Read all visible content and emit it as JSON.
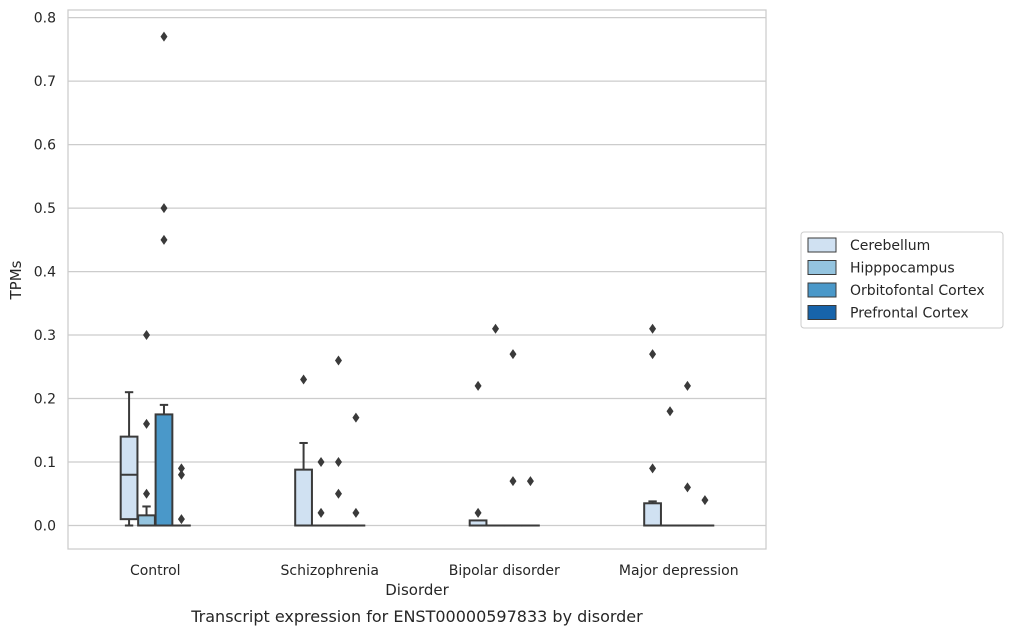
{
  "caption": "Transcript expression for ENST00000597833 by disorder",
  "chart_data": {
    "type": "box",
    "xlabel": "Disorder",
    "ylabel": "TPMs",
    "ylim": [
      -0.037,
      0.812
    ],
    "yticks": [
      0.0,
      0.1,
      0.2,
      0.3,
      0.4,
      0.5,
      0.6,
      0.7,
      0.8
    ],
    "ytick_labels": [
      "0.0",
      "0.1",
      "0.2",
      "0.3",
      "0.4",
      "0.5",
      "0.6",
      "0.7",
      "0.8"
    ],
    "grid": true,
    "legend_position": "center-right",
    "categories": [
      "Control",
      "Schizophrenia",
      "Bipolar disorder",
      "Major depression"
    ],
    "series": [
      {
        "name": "Cerebellum",
        "color": "#d0e1f2",
        "boxes": [
          {
            "q1": 0.01,
            "median": 0.08,
            "q3": 0.14,
            "whisker_low": 0.0,
            "whisker_high": 0.21,
            "outliers": []
          },
          {
            "q1": 0.0,
            "median": 0.0,
            "q3": 0.088,
            "whisker_low": 0.0,
            "whisker_high": 0.13,
            "outliers": [
              0.23
            ]
          },
          {
            "q1": 0.0,
            "median": 0.0,
            "q3": 0.008,
            "whisker_low": 0.0,
            "whisker_high": 0.008,
            "outliers": [
              0.02,
              0.22
            ]
          },
          {
            "q1": 0.0,
            "median": 0.0,
            "q3": 0.035,
            "whisker_low": 0.0,
            "whisker_high": 0.038,
            "outliers": [
              0.09,
              0.27,
              0.31
            ]
          }
        ]
      },
      {
        "name": "Hipppocampus",
        "color": "#94c4df",
        "boxes": [
          {
            "q1": 0.0,
            "median": 0.0,
            "q3": 0.016,
            "whisker_low": 0.0,
            "whisker_high": 0.03,
            "outliers": [
              0.05,
              0.16,
              0.3
            ]
          },
          {
            "q1": 0.0,
            "median": 0.0,
            "q3": 0.0,
            "whisker_low": 0.0,
            "whisker_high": 0.0,
            "outliers": [
              0.02,
              0.1
            ]
          },
          {
            "q1": 0.0,
            "median": 0.0,
            "q3": 0.0,
            "whisker_low": 0.0,
            "whisker_high": 0.0,
            "outliers": [
              0.31
            ]
          },
          {
            "q1": 0.0,
            "median": 0.0,
            "q3": 0.0,
            "whisker_low": 0.0,
            "whisker_high": 0.0,
            "outliers": [
              0.18
            ]
          }
        ]
      },
      {
        "name": "Orbitofontal Cortex",
        "color": "#4a98c9",
        "boxes": [
          {
            "q1": 0.0,
            "median": 0.0,
            "q3": 0.175,
            "whisker_low": 0.0,
            "whisker_high": 0.19,
            "outliers": [
              0.45,
              0.5,
              0.77
            ]
          },
          {
            "q1": 0.0,
            "median": 0.0,
            "q3": 0.0,
            "whisker_low": 0.0,
            "whisker_high": 0.0,
            "outliers": [
              0.05,
              0.1,
              0.26
            ]
          },
          {
            "q1": 0.0,
            "median": 0.0,
            "q3": 0.0,
            "whisker_low": 0.0,
            "whisker_high": 0.0,
            "outliers": [
              0.07,
              0.27
            ]
          },
          {
            "q1": 0.0,
            "median": 0.0,
            "q3": 0.0,
            "whisker_low": 0.0,
            "whisker_high": 0.0,
            "outliers": [
              0.06,
              0.22
            ]
          }
        ]
      },
      {
        "name": "Prefrontal Cortex",
        "color": "#1764ab",
        "boxes": [
          {
            "q1": 0.0,
            "median": 0.0,
            "q3": 0.0,
            "whisker_low": 0.0,
            "whisker_high": 0.0,
            "outliers": [
              0.01,
              0.08,
              0.09
            ]
          },
          {
            "q1": 0.0,
            "median": 0.0,
            "q3": 0.0,
            "whisker_low": 0.0,
            "whisker_high": 0.0,
            "outliers": [
              0.02,
              0.17
            ]
          },
          {
            "q1": 0.0,
            "median": 0.0,
            "q3": 0.0,
            "whisker_low": 0.0,
            "whisker_high": 0.0,
            "outliers": [
              0.07
            ]
          },
          {
            "q1": 0.0,
            "median": 0.0,
            "q3": 0.0,
            "whisker_low": 0.0,
            "whisker_high": 0.0,
            "outliers": [
              0.04
            ]
          }
        ]
      }
    ]
  }
}
